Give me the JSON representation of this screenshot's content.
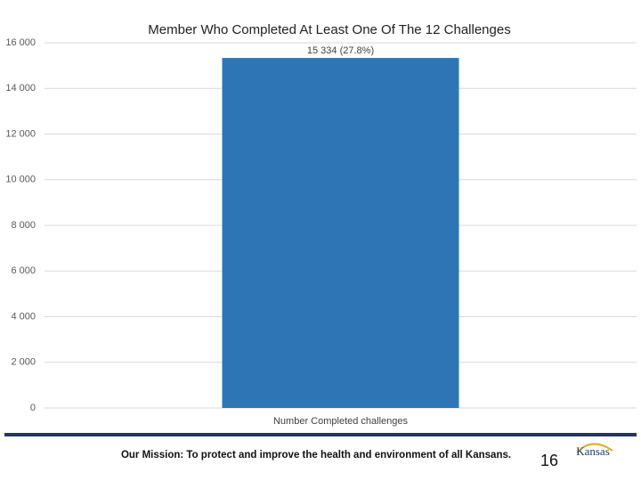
{
  "chart_data": {
    "type": "bar",
    "title": "Member Who Completed At Least One Of The 12 Challenges",
    "categories": [
      "Number Completed challenges"
    ],
    "values": [
      15334
    ],
    "value_labels": [
      "15 334 (27.8%)"
    ],
    "color": "#2e75b6",
    "ylim": [
      0,
      16000
    ],
    "yticks": [
      0,
      {
        "value": 2000,
        "label": "2 000"
      },
      {
        "value": 4000,
        "label": "4 000"
      },
      {
        "value": 6000,
        "label": "6 000"
      },
      {
        "value": 8000,
        "label": "8 000"
      },
      {
        "value": 10000,
        "label": "10 000"
      },
      {
        "value": 12000,
        "label": "12 000"
      },
      {
        "value": 14000,
        "label": "14 000"
      },
      {
        "value": 16000,
        "label": "16 000"
      }
    ],
    "grid": true
  },
  "footer": {
    "mission": "Our Mission: To protect and improve the health and environment of all Kansans.",
    "page_number": "16",
    "logo": "Kansas"
  }
}
